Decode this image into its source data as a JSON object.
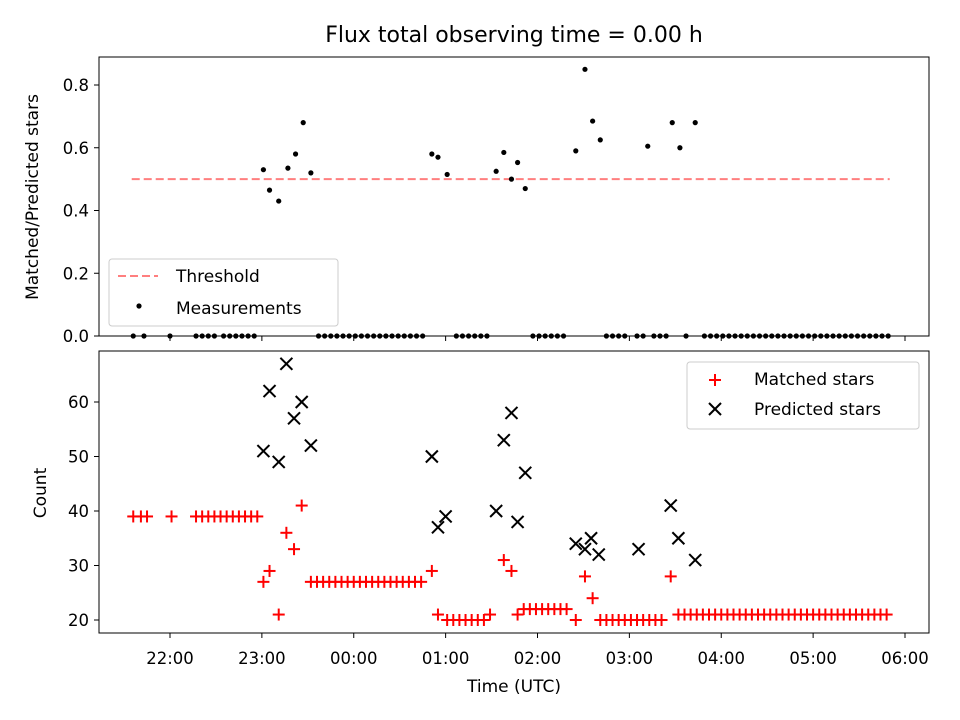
{
  "chart_data": [
    {
      "type": "scatter",
      "title": "Flux total observing time = 0.00 h",
      "xlabel": "",
      "ylabel": "Matched/Predicted stars",
      "ylim": [
        0,
        0.9
      ],
      "yticks": [
        "0.0",
        "0.2",
        "0.4",
        "0.6",
        "0.8"
      ],
      "ytick_values": [
        0,
        0.2,
        0.4,
        0.6,
        0.8
      ],
      "grid": false,
      "legend": {
        "placement": "lower-left",
        "entries": [
          "Threshold",
          "Measurements"
        ]
      },
      "threshold": {
        "name": "Threshold",
        "value": 0.5,
        "x_start": "21:35",
        "x_end": "05:50",
        "color": "#ff7f7f"
      },
      "series": [
        {
          "name": "Measurements",
          "color": "#000000",
          "points": [
            [
              "21:36",
              0
            ],
            [
              "21:43",
              0
            ],
            [
              "22:00",
              0
            ],
            [
              "22:17",
              0
            ],
            [
              "22:21",
              0
            ],
            [
              "22:25",
              0
            ],
            [
              "22:29",
              0
            ],
            [
              "22:35",
              0
            ],
            [
              "22:39",
              0
            ],
            [
              "22:43",
              0
            ],
            [
              "22:47",
              0
            ],
            [
              "22:51",
              0
            ],
            [
              "22:55",
              0
            ],
            [
              "23:01",
              0.53
            ],
            [
              "23:05",
              0.465
            ],
            [
              "23:11",
              0.43
            ],
            [
              "23:17",
              0.535
            ],
            [
              "23:22",
              0.58
            ],
            [
              "23:27",
              0.68
            ],
            [
              "23:32",
              0.52
            ],
            [
              "23:37",
              0
            ],
            [
              "23:41",
              0
            ],
            [
              "23:45",
              0
            ],
            [
              "23:49",
              0
            ],
            [
              "23:53",
              0
            ],
            [
              "23:57",
              0
            ],
            [
              "00:01",
              0
            ],
            [
              "00:05",
              0
            ],
            [
              "00:09",
              0
            ],
            [
              "00:13",
              0
            ],
            [
              "00:17",
              0
            ],
            [
              "00:21",
              0
            ],
            [
              "00:25",
              0
            ],
            [
              "00:29",
              0
            ],
            [
              "00:33",
              0
            ],
            [
              "00:37",
              0
            ],
            [
              "00:41",
              0
            ],
            [
              "00:45",
              0
            ],
            [
              "00:51",
              0.58
            ],
            [
              "00:55",
              0.57
            ],
            [
              "01:01",
              0.515
            ],
            [
              "01:07",
              0
            ],
            [
              "01:11",
              0
            ],
            [
              "01:15",
              0
            ],
            [
              "01:19",
              0
            ],
            [
              "01:23",
              0
            ],
            [
              "01:27",
              0
            ],
            [
              "01:33",
              0.525
            ],
            [
              "01:38",
              0.585
            ],
            [
              "01:43",
              0.5
            ],
            [
              "01:47",
              0.553
            ],
            [
              "01:52",
              0.47
            ],
            [
              "01:57",
              0
            ],
            [
              "02:01",
              0
            ],
            [
              "02:05",
              0
            ],
            [
              "02:09",
              0
            ],
            [
              "02:13",
              0
            ],
            [
              "02:17",
              0
            ],
            [
              "02:25",
              0.59
            ],
            [
              "02:31",
              0.85
            ],
            [
              "02:36",
              0.685
            ],
            [
              "02:41",
              0.625
            ],
            [
              "02:45",
              0
            ],
            [
              "02:49",
              0
            ],
            [
              "02:53",
              0
            ],
            [
              "02:57",
              0
            ],
            [
              "03:05",
              0
            ],
            [
              "03:09",
              0
            ],
            [
              "03:12",
              0.605
            ],
            [
              "03:16",
              0
            ],
            [
              "03:20",
              0
            ],
            [
              "03:24",
              0
            ],
            [
              "03:28",
              0.68
            ],
            [
              "03:33",
              0.6
            ],
            [
              "03:37",
              0
            ],
            [
              "03:43",
              0.68
            ],
            [
              "03:49",
              0
            ],
            [
              "03:53",
              0
            ],
            [
              "03:57",
              0
            ],
            [
              "04:01",
              0
            ],
            [
              "04:05",
              0
            ],
            [
              "04:09",
              0
            ],
            [
              "04:13",
              0
            ],
            [
              "04:17",
              0
            ],
            [
              "04:21",
              0
            ],
            [
              "04:25",
              0
            ],
            [
              "04:29",
              0
            ],
            [
              "04:33",
              0
            ],
            [
              "04:37",
              0
            ],
            [
              "04:41",
              0
            ],
            [
              "04:45",
              0
            ],
            [
              "04:49",
              0
            ],
            [
              "04:53",
              0
            ],
            [
              "04:57",
              0
            ],
            [
              "05:01",
              0
            ],
            [
              "05:05",
              0
            ],
            [
              "05:09",
              0
            ],
            [
              "05:13",
              0
            ],
            [
              "05:17",
              0
            ],
            [
              "05:21",
              0
            ],
            [
              "05:25",
              0
            ],
            [
              "05:29",
              0
            ],
            [
              "05:33",
              0
            ],
            [
              "05:37",
              0
            ],
            [
              "05:41",
              0
            ],
            [
              "05:45",
              0
            ],
            [
              "05:49",
              0
            ]
          ]
        }
      ]
    },
    {
      "type": "scatter",
      "title": "",
      "xlabel": "Time (UTC)",
      "ylabel": "Count",
      "ylim": [
        17.7,
        69.5
      ],
      "yticks": [
        "20",
        "30",
        "40",
        "50",
        "60"
      ],
      "ytick_values": [
        20,
        30,
        40,
        50,
        60
      ],
      "xticks": [
        "22:00",
        "23:00",
        "00:00",
        "01:00",
        "02:00",
        "03:00",
        "04:00",
        "05:00",
        "06:00"
      ],
      "grid": false,
      "legend": {
        "placement": "top-right",
        "entries": [
          "Matched stars",
          "Predicted stars"
        ]
      },
      "series": [
        {
          "name": "Matched stars",
          "marker": "plus",
          "color": "#ff0000",
          "points": [
            [
              "21:36",
              39
            ],
            [
              "21:41",
              39
            ],
            [
              "21:45",
              39
            ],
            [
              "22:01",
              39
            ],
            [
              "22:17",
              39
            ],
            [
              "22:21",
              39
            ],
            [
              "22:25",
              39
            ],
            [
              "22:29",
              39
            ],
            [
              "22:33",
              39
            ],
            [
              "22:37",
              39
            ],
            [
              "22:41",
              39
            ],
            [
              "22:45",
              39
            ],
            [
              "22:49",
              39
            ],
            [
              "22:53",
              39
            ],
            [
              "22:57",
              39
            ],
            [
              "23:01",
              27
            ],
            [
              "23:05",
              29
            ],
            [
              "23:11",
              21
            ],
            [
              "23:16",
              36
            ],
            [
              "23:21",
              33
            ],
            [
              "23:26",
              41
            ],
            [
              "23:32",
              27
            ],
            [
              "23:36",
              27
            ],
            [
              "23:40",
              27
            ],
            [
              "23:44",
              27
            ],
            [
              "23:48",
              27
            ],
            [
              "23:52",
              27
            ],
            [
              "23:56",
              27
            ],
            [
              "00:00",
              27
            ],
            [
              "00:04",
              27
            ],
            [
              "00:08",
              27
            ],
            [
              "00:12",
              27
            ],
            [
              "00:16",
              27
            ],
            [
              "00:20",
              27
            ],
            [
              "00:24",
              27
            ],
            [
              "00:28",
              27
            ],
            [
              "00:32",
              27
            ],
            [
              "00:36",
              27
            ],
            [
              "00:40",
              27
            ],
            [
              "00:44",
              27
            ],
            [
              "00:51",
              29
            ],
            [
              "00:55",
              21
            ],
            [
              "01:01",
              20
            ],
            [
              "01:05",
              20
            ],
            [
              "01:09",
              20
            ],
            [
              "01:13",
              20
            ],
            [
              "01:17",
              20
            ],
            [
              "01:21",
              20
            ],
            [
              "01:25",
              20
            ],
            [
              "01:29",
              21
            ],
            [
              "01:38",
              31
            ],
            [
              "01:43",
              29
            ],
            [
              "01:47",
              21
            ],
            [
              "01:51",
              22
            ],
            [
              "01:55",
              22
            ],
            [
              "01:59",
              22
            ],
            [
              "02:03",
              22
            ],
            [
              "02:07",
              22
            ],
            [
              "02:11",
              22
            ],
            [
              "02:15",
              22
            ],
            [
              "02:19",
              22
            ],
            [
              "02:25",
              20
            ],
            [
              "02:31",
              28
            ],
            [
              "02:36",
              24
            ],
            [
              "02:41",
              20
            ],
            [
              "02:45",
              20
            ],
            [
              "02:49",
              20
            ],
            [
              "02:53",
              20
            ],
            [
              "02:57",
              20
            ],
            [
              "03:01",
              20
            ],
            [
              "03:05",
              20
            ],
            [
              "03:09",
              20
            ],
            [
              "03:13",
              20
            ],
            [
              "03:17",
              20
            ],
            [
              "03:21",
              20
            ],
            [
              "03:27",
              28
            ],
            [
              "03:32",
              21
            ],
            [
              "03:36",
              21
            ],
            [
              "03:40",
              21
            ],
            [
              "03:44",
              21
            ],
            [
              "03:48",
              21
            ],
            [
              "03:52",
              21
            ],
            [
              "03:56",
              21
            ],
            [
              "04:00",
              21
            ],
            [
              "04:04",
              21
            ],
            [
              "04:08",
              21
            ],
            [
              "04:12",
              21
            ],
            [
              "04:16",
              21
            ],
            [
              "04:20",
              21
            ],
            [
              "04:24",
              21
            ],
            [
              "04:28",
              21
            ],
            [
              "04:32",
              21
            ],
            [
              "04:36",
              21
            ],
            [
              "04:40",
              21
            ],
            [
              "04:44",
              21
            ],
            [
              "04:48",
              21
            ],
            [
              "04:52",
              21
            ],
            [
              "04:56",
              21
            ],
            [
              "05:00",
              21
            ],
            [
              "05:04",
              21
            ],
            [
              "05:08",
              21
            ],
            [
              "05:12",
              21
            ],
            [
              "05:16",
              21
            ],
            [
              "05:20",
              21
            ],
            [
              "05:24",
              21
            ],
            [
              "05:28",
              21
            ],
            [
              "05:32",
              21
            ],
            [
              "05:36",
              21
            ],
            [
              "05:40",
              21
            ],
            [
              "05:44",
              21
            ],
            [
              "05:48",
              21
            ]
          ]
        },
        {
          "name": "Predicted stars",
          "marker": "x",
          "color": "#000000",
          "points": [
            [
              "23:01",
              51
            ],
            [
              "23:05",
              62
            ],
            [
              "23:11",
              49
            ],
            [
              "23:16",
              67
            ],
            [
              "23:21",
              57
            ],
            [
              "23:26",
              60
            ],
            [
              "23:32",
              52
            ],
            [
              "00:51",
              50
            ],
            [
              "00:55",
              37
            ],
            [
              "01:00",
              39
            ],
            [
              "01:33",
              40
            ],
            [
              "01:38",
              53
            ],
            [
              "01:43",
              58
            ],
            [
              "01:47",
              38
            ],
            [
              "01:52",
              47
            ],
            [
              "02:25",
              34
            ],
            [
              "02:31",
              33
            ],
            [
              "02:35",
              35
            ],
            [
              "02:40",
              32
            ],
            [
              "03:06",
              33
            ],
            [
              "03:27",
              41
            ],
            [
              "03:32",
              35
            ],
            [
              "03:43",
              31
            ]
          ]
        }
      ]
    }
  ]
}
